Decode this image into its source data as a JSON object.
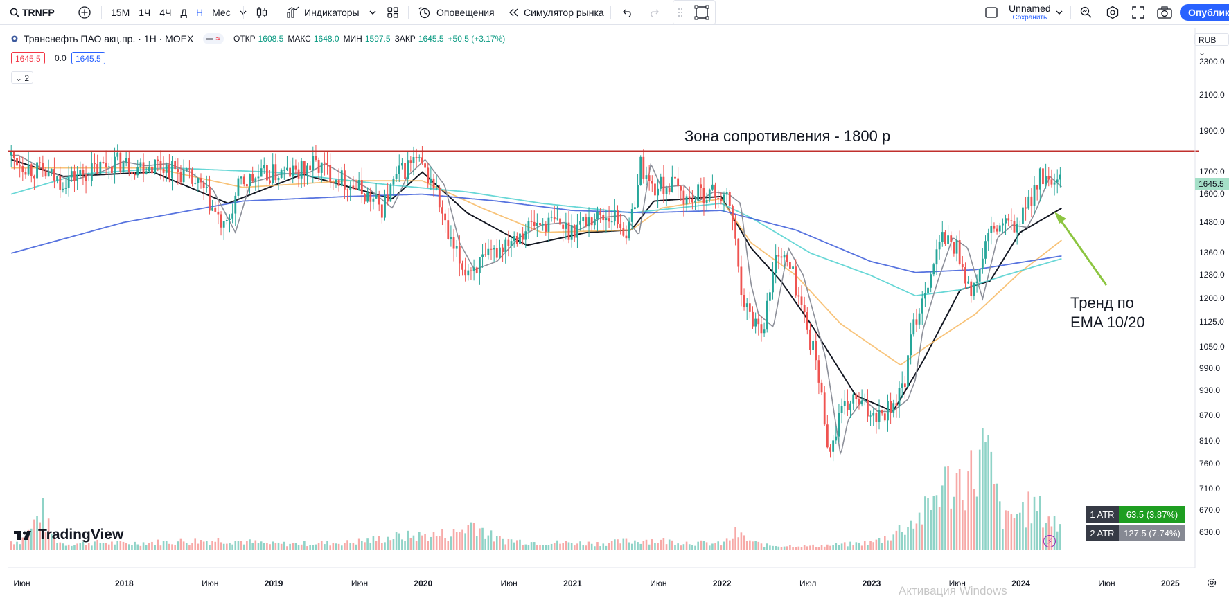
{
  "toolbar": {
    "symbol": "TRNFP",
    "intervals": [
      "15M",
      "1Ч",
      "4Ч",
      "Д",
      "Н",
      "Мес"
    ],
    "active_interval": "Н",
    "indicators_label": "Индикаторы",
    "alerts_label": "Оповещения",
    "simulator_label": "Симулятор рынка",
    "layout_name": "Unnamed",
    "save_label": "Сохранить",
    "publish_label": "Опублик"
  },
  "legend": {
    "title": "Транснефть ПАО акц.пр. · 1Н · MOEX",
    "open_label": "ОТКР",
    "open": "1608.5",
    "high_label": "МАКС",
    "high": "1648.0",
    "low_label": "МИН",
    "low": "1597.5",
    "close_label": "ЗАКР",
    "close": "1645.5",
    "change": "+50.5 (+3.17%)",
    "bid": "1645.5",
    "spread": "0.0",
    "ask": "1645.5",
    "collapse_count": "2"
  },
  "currency": "RUB",
  "last_price_label": "1645.5",
  "annotations": {
    "resistance": "Зона сопротивления - 1800  р",
    "trend_line1": "Тренд по",
    "trend_line2": "EMA 10/20"
  },
  "atr": [
    {
      "label": "1 ATR",
      "value": "63.5 (3.87%)",
      "color": "#1e9e21"
    },
    {
      "label": "2 ATR",
      "value": "127.5 (7.74%)",
      "color": "#868993"
    }
  ],
  "brand": "TradingView",
  "watermark": "Активация Windows",
  "chart_data": {
    "type": "candlestick",
    "scale": "log",
    "currency": "RUB",
    "y_ticks": [
      2300,
      2100,
      1900,
      1700,
      1600,
      1480,
      1360,
      1280,
      1200,
      1125,
      1050,
      990,
      930,
      870,
      810,
      760,
      710,
      670,
      630
    ],
    "x_labels": [
      "Июн",
      "2018",
      "Июн",
      "2019",
      "Июн",
      "2020",
      "Июн",
      "2021",
      "Июн",
      "2022",
      "Июл",
      "2023",
      "Июн",
      "2024",
      "Июн",
      "2025"
    ],
    "resistance_level": 1800,
    "last_price": 1645.5,
    "close": [
      [
        2017.25,
        1780
      ],
      [
        2017.4,
        1720
      ],
      [
        2017.6,
        1660
      ],
      [
        2017.8,
        1700
      ],
      [
        2017.95,
        1750
      ],
      [
        2018.1,
        1730
      ],
      [
        2018.25,
        1740
      ],
      [
        2018.4,
        1700
      ],
      [
        2018.55,
        1620
      ],
      [
        2018.7,
        1440
      ],
      [
        2018.8,
        1650
      ],
      [
        2019.0,
        1690
      ],
      [
        2019.2,
        1700
      ],
      [
        2019.3,
        1740
      ],
      [
        2019.45,
        1680
      ],
      [
        2019.6,
        1620
      ],
      [
        2019.75,
        1540
      ],
      [
        2019.85,
        1680
      ],
      [
        2019.97,
        1760
      ],
      [
        2020.1,
        1640
      ],
      [
        2020.2,
        1400
      ],
      [
        2020.3,
        1300
      ],
      [
        2020.45,
        1330
      ],
      [
        2020.6,
        1420
      ],
      [
        2020.75,
        1470
      ],
      [
        2020.9,
        1480
      ],
      [
        2021.0,
        1450
      ],
      [
        2021.15,
        1500
      ],
      [
        2021.3,
        1510
      ],
      [
        2021.4,
        1430
      ],
      [
        2021.48,
        1740
      ],
      [
        2021.55,
        1630
      ],
      [
        2021.7,
        1640
      ],
      [
        2021.8,
        1570
      ],
      [
        2021.9,
        1610
      ],
      [
        2022.0,
        1600
      ],
      [
        2022.08,
        1560
      ],
      [
        2022.15,
        1250
      ],
      [
        2022.2,
        1150
      ],
      [
        2022.3,
        1110
      ],
      [
        2022.4,
        1380
      ],
      [
        2022.5,
        1280
      ],
      [
        2022.6,
        1100
      ],
      [
        2022.65,
        1020
      ],
      [
        2022.75,
        780
      ],
      [
        2022.8,
        860
      ],
      [
        2022.9,
        910
      ],
      [
        2023.0,
        880
      ],
      [
        2023.1,
        880
      ],
      [
        2023.2,
        910
      ],
      [
        2023.25,
        960
      ],
      [
        2023.3,
        1100
      ],
      [
        2023.4,
        1260
      ],
      [
        2023.5,
        1420
      ],
      [
        2023.6,
        1380
      ],
      [
        2023.7,
        1200
      ],
      [
        2023.8,
        1420
      ],
      [
        2023.9,
        1470
      ],
      [
        2024.0,
        1460
      ],
      [
        2024.05,
        1520
      ],
      [
        2024.15,
        1680
      ],
      [
        2024.25,
        1620
      ],
      [
        2024.28,
        1645.5
      ]
    ],
    "volume": [
      [
        2017.3,
        12
      ],
      [
        2017.45,
        62
      ],
      [
        2017.6,
        8
      ],
      [
        2017.8,
        10
      ],
      [
        2018.0,
        9
      ],
      [
        2018.3,
        11
      ],
      [
        2018.7,
        14
      ],
      [
        2019.0,
        8
      ],
      [
        2019.5,
        10
      ],
      [
        2019.8,
        18
      ],
      [
        2020.2,
        22
      ],
      [
        2020.35,
        40
      ],
      [
        2020.5,
        15
      ],
      [
        2020.8,
        10
      ],
      [
        2021.2,
        9
      ],
      [
        2021.5,
        14
      ],
      [
        2021.8,
        10
      ],
      [
        2022.0,
        8
      ],
      [
        2022.1,
        24
      ],
      [
        2022.3,
        6
      ],
      [
        2022.6,
        5
      ],
      [
        2022.8,
        7
      ],
      [
        2023.0,
        10
      ],
      [
        2023.2,
        30
      ],
      [
        2023.4,
        60
      ],
      [
        2023.45,
        90
      ],
      [
        2023.6,
        100
      ],
      [
        2023.7,
        110
      ],
      [
        2023.75,
        140
      ],
      [
        2023.8,
        120
      ],
      [
        2023.9,
        40
      ],
      [
        2024.0,
        55
      ],
      [
        2024.1,
        60
      ],
      [
        2024.2,
        45
      ],
      [
        2024.28,
        30
      ]
    ],
    "series": [
      {
        "name": "EMA 10",
        "color": "#131722",
        "values": [
          [
            2017.25,
            1760
          ],
          [
            2017.6,
            1680
          ],
          [
            2018.2,
            1700
          ],
          [
            2018.7,
            1560
          ],
          [
            2019.2,
            1690
          ],
          [
            2019.8,
            1580
          ],
          [
            2020.0,
            1700
          ],
          [
            2020.3,
            1520
          ],
          [
            2020.7,
            1390
          ],
          [
            2021.1,
            1440
          ],
          [
            2021.4,
            1450
          ],
          [
            2021.55,
            1570
          ],
          [
            2022.0,
            1590
          ],
          [
            2022.2,
            1380
          ],
          [
            2022.4,
            1260
          ],
          [
            2022.6,
            1120
          ],
          [
            2022.9,
            920
          ],
          [
            2023.15,
            880
          ],
          [
            2023.35,
            1010
          ],
          [
            2023.6,
            1230
          ],
          [
            2023.8,
            1260
          ],
          [
            2024.0,
            1440
          ],
          [
            2024.28,
            1540
          ]
        ]
      },
      {
        "name": "EMA 20",
        "color": "#f7b861",
        "values": [
          [
            2017.25,
            1720
          ],
          [
            2018.2,
            1720
          ],
          [
            2018.8,
            1630
          ],
          [
            2019.5,
            1660
          ],
          [
            2020.0,
            1660
          ],
          [
            2020.4,
            1540
          ],
          [
            2020.8,
            1440
          ],
          [
            2021.4,
            1450
          ],
          [
            2021.6,
            1540
          ],
          [
            2022.0,
            1580
          ],
          [
            2022.2,
            1400
          ],
          [
            2022.5,
            1280
          ],
          [
            2022.8,
            1120
          ],
          [
            2023.2,
            1000
          ],
          [
            2023.4,
            1060
          ],
          [
            2023.7,
            1150
          ],
          [
            2024.0,
            1290
          ],
          [
            2024.28,
            1410
          ]
        ]
      },
      {
        "name": "EMA 50",
        "color": "#4dd0cf",
        "values": [
          [
            2017.25,
            1600
          ],
          [
            2017.7,
            1690
          ],
          [
            2018.3,
            1720
          ],
          [
            2019.0,
            1700
          ],
          [
            2019.8,
            1640
          ],
          [
            2020.3,
            1610
          ],
          [
            2020.8,
            1560
          ],
          [
            2021.4,
            1520
          ],
          [
            2022.0,
            1560
          ],
          [
            2022.2,
            1500
          ],
          [
            2022.6,
            1360
          ],
          [
            2023.0,
            1280
          ],
          [
            2023.3,
            1210
          ],
          [
            2023.6,
            1230
          ],
          [
            2023.9,
            1280
          ],
          [
            2024.28,
            1340
          ]
        ]
      },
      {
        "name": "EMA 200",
        "color": "#3a5bd9",
        "values": [
          [
            2017.25,
            1360
          ],
          [
            2018.0,
            1480
          ],
          [
            2018.8,
            1570
          ],
          [
            2019.5,
            1590
          ],
          [
            2020.0,
            1600
          ],
          [
            2020.5,
            1570
          ],
          [
            2021.0,
            1530
          ],
          [
            2021.5,
            1520
          ],
          [
            2022.0,
            1530
          ],
          [
            2022.5,
            1450
          ],
          [
            2023.0,
            1330
          ],
          [
            2023.3,
            1290
          ],
          [
            2023.7,
            1300
          ],
          [
            2024.28,
            1350
          ]
        ]
      }
    ]
  }
}
